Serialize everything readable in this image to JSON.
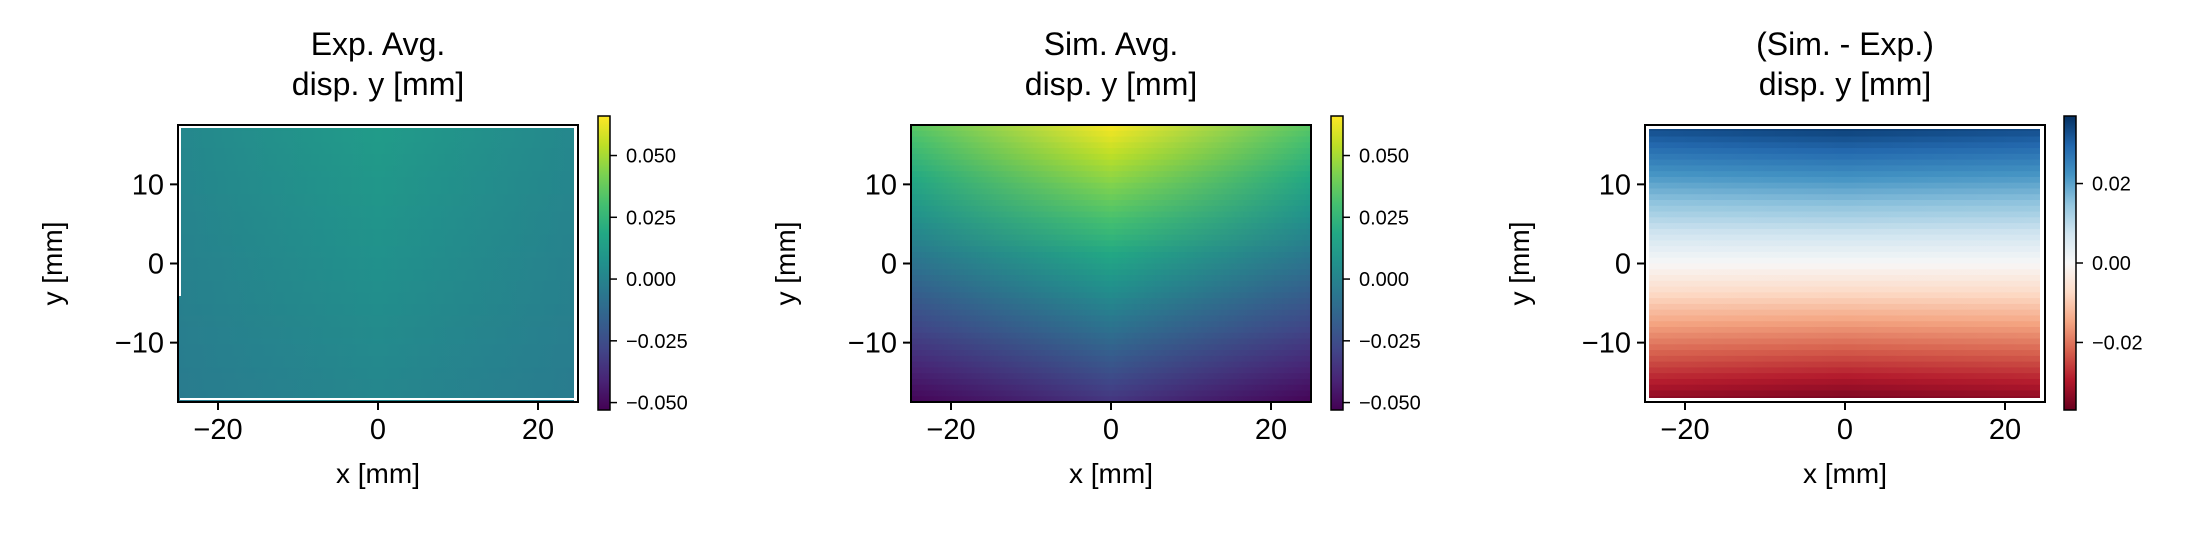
{
  "chart_data": [
    {
      "type": "heatmap",
      "title": "Exp. Avg.\ndisp. y [mm]",
      "xlabel": "x [mm]",
      "ylabel": "y [mm]",
      "xlim": [
        -25,
        25
      ],
      "ylim": [
        -17.5,
        17.5
      ],
      "xticks": [
        -20,
        0,
        20
      ],
      "yticks": [
        -10,
        0,
        10
      ],
      "xtick_labels": [
        "−20",
        "0",
        "20"
      ],
      "ytick_labels": [
        "−10",
        "0",
        "10"
      ],
      "colormap": "viridis",
      "clim": [
        -0.053,
        0.066
      ],
      "colorbar_ticks": [
        0.05,
        0.025,
        0.0,
        -0.025,
        -0.05
      ],
      "colorbar_tick_labels": [
        "0.050",
        "0.025",
        "0.000",
        "−0.025",
        "−0.050"
      ],
      "field": {
        "top_center": 0.012,
        "top_edge": 0.002,
        "bottom_center": 0.001,
        "bottom_edge": -0.004
      }
    },
    {
      "type": "heatmap",
      "title": "Sim. Avg.\ndisp. y [mm]",
      "xlabel": "x [mm]",
      "ylabel": "y [mm]",
      "xlim": [
        -25,
        25
      ],
      "ylim": [
        -17.5,
        17.5
      ],
      "xticks": [
        -20,
        0,
        20
      ],
      "yticks": [
        -10,
        0,
        10
      ],
      "xtick_labels": [
        "−20",
        "0",
        "20"
      ],
      "ytick_labels": [
        "−10",
        "0",
        "10"
      ],
      "colormap": "viridis",
      "clim": [
        -0.053,
        0.066
      ],
      "colorbar_ticks": [
        0.05,
        0.025,
        0.0,
        -0.025,
        -0.05
      ],
      "colorbar_tick_labels": [
        "0.050",
        "0.025",
        "0.000",
        "−0.025",
        "−0.050"
      ],
      "field": {
        "top_center": 0.065,
        "top_edge": 0.035,
        "bottom_center": -0.035,
        "bottom_edge": -0.052
      }
    },
    {
      "type": "heatmap",
      "title": "(Sim. - Exp.)\ndisp. y [mm]",
      "xlabel": "x [mm]",
      "ylabel": "y [mm]",
      "xlim": [
        -25,
        25
      ],
      "ylim": [
        -17.5,
        17.5
      ],
      "xticks": [
        -20,
        0,
        20
      ],
      "yticks": [
        -10,
        0,
        10
      ],
      "xtick_labels": [
        "−20",
        "0",
        "20"
      ],
      "ytick_labels": [
        "−10",
        "0",
        "10"
      ],
      "colormap": "RdBu",
      "clim": [
        -0.037,
        0.037
      ],
      "colorbar_ticks": [
        0.02,
        0.0,
        -0.02
      ],
      "colorbar_tick_labels": [
        "0.02",
        "0.00",
        "−0.02"
      ],
      "field": {
        "top_center": 0.036,
        "top_edge": 0.034,
        "bottom_center": -0.036,
        "bottom_edge": -0.034
      }
    }
  ]
}
